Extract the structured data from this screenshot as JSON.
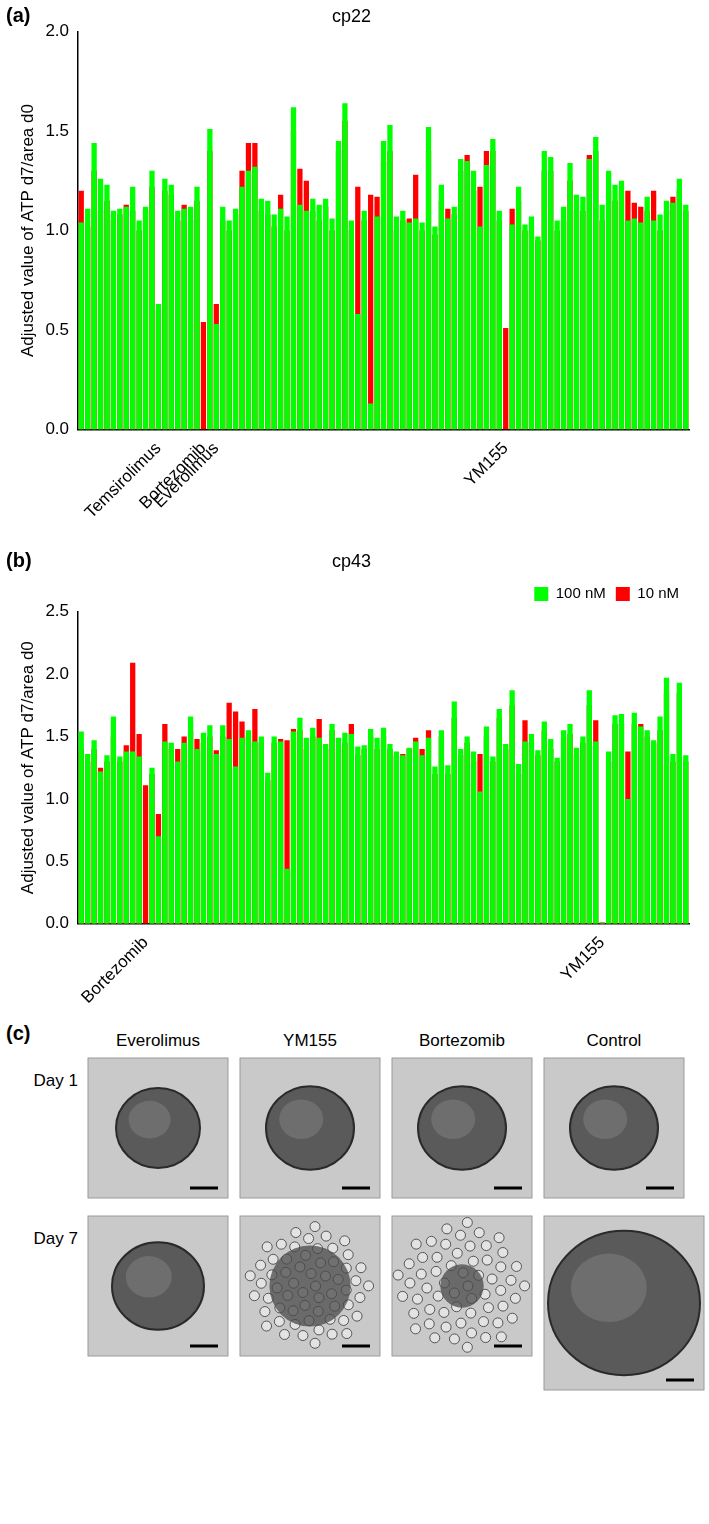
{
  "chart_data": [
    {
      "panel": "(a)",
      "type": "bar",
      "title": "cp22",
      "y_label": "Adjusted value of ATP d7/area d0",
      "categories": [
        null,
        null,
        null,
        null,
        null,
        null,
        null,
        null,
        null,
        null,
        null,
        null,
        "Temsirolimus",
        null,
        null,
        null,
        null,
        null,
        null,
        "Bortezomib",
        null,
        "Everolimus",
        null,
        null,
        null,
        null,
        null,
        null,
        null,
        null,
        null,
        null,
        null,
        null,
        null,
        null,
        null,
        null,
        null,
        null,
        null,
        null,
        null,
        null,
        null,
        null,
        null,
        null,
        null,
        null,
        null,
        null,
        null,
        null,
        null,
        null,
        null,
        null,
        null,
        null,
        null,
        null,
        null,
        null,
        null,
        null,
        "YM155",
        null,
        null,
        null,
        null,
        null,
        null,
        null,
        null,
        null,
        null,
        null,
        null,
        null,
        null,
        null,
        null,
        null,
        null,
        null,
        null,
        null,
        null,
        null,
        null,
        null,
        null,
        null,
        null
      ],
      "series": [
        {
          "name": "10 nM",
          "color": "#ff0000",
          "values": [
            1.2,
            1.02,
            1.3,
            1.1,
            1.15,
            1.05,
            1.08,
            1.13,
            1.1,
            1.0,
            1.1,
            1.22,
            0.6,
            1.2,
            1.18,
            1.05,
            1.13,
            1.05,
            1.15,
            0.54,
            1.4,
            0.63,
            1.05,
            1.0,
            1.08,
            1.3,
            1.44,
            1.44,
            1.1,
            1.08,
            1.02,
            1.18,
            1.0,
            1.5,
            1.31,
            1.25,
            1.1,
            1.05,
            1.12,
            1.0,
            1.4,
            1.55,
            1.0,
            1.22,
            1.05,
            1.18,
            1.17,
            1.35,
            1.4,
            1.0,
            1.05,
            1.06,
            1.28,
            1.0,
            1.4,
            0.98,
            1.15,
            1.11,
            1.08,
            1.3,
            1.38,
            1.2,
            1.22,
            1.4,
            1.4,
            1.05,
            0.51,
            1.11,
            1.15,
            1.0,
            1.0,
            0.95,
            1.3,
            1.3,
            1.0,
            1.05,
            1.25,
            1.1,
            1.1,
            1.38,
            1.4,
            1.05,
            1.2,
            1.15,
            1.2,
            1.2,
            1.14,
            1.12,
            1.1,
            1.2,
            1.0,
            1.1,
            1.17,
            1.2,
            1.1
          ]
        },
        {
          "name": "100 nM",
          "color": "#00ff00",
          "values": [
            1.04,
            1.11,
            1.44,
            1.26,
            1.23,
            1.1,
            1.11,
            1.12,
            1.22,
            1.05,
            1.12,
            1.3,
            0.63,
            1.26,
            1.23,
            1.1,
            1.11,
            1.12,
            1.22,
            0,
            1.51,
            0.53,
            1.12,
            1.05,
            1.11,
            1.22,
            1.3,
            1.32,
            1.16,
            1.15,
            1.08,
            1.11,
            1.07,
            1.62,
            1.13,
            1.1,
            1.16,
            1.13,
            1.16,
            1.06,
            1.45,
            1.64,
            1.05,
            0.58,
            1.1,
            0.13,
            1.07,
            1.45,
            1.53,
            1.07,
            1.1,
            1.04,
            1.06,
            1.04,
            1.52,
            1.02,
            1.23,
            1.06,
            1.12,
            1.36,
            1.35,
            1.3,
            1.02,
            1.33,
            1.46,
            1.1,
            0,
            1.03,
            1.22,
            1.03,
            1.07,
            0.97,
            1.4,
            1.37,
            1.05,
            1.12,
            1.34,
            1.18,
            1.17,
            1.36,
            1.47,
            1.13,
            1.3,
            1.23,
            1.25,
            1.05,
            1.06,
            1.04,
            1.17,
            1.05,
            1.08,
            1.15,
            1.14,
            1.26,
            1.13
          ]
        }
      ],
      "ylim": [
        0,
        2.0
      ],
      "yticks": [
        {
          "value": 0,
          "label": "0.0"
        },
        {
          "value": 0.5,
          "label": "0.5"
        },
        {
          "value": 1.0,
          "label": "1.0"
        },
        {
          "value": 1.5,
          "label": "1.5"
        },
        {
          "value": 2.0,
          "label": "2.0"
        }
      ],
      "grid": false
    },
    {
      "panel": "(b)",
      "type": "bar",
      "title": "cp43",
      "y_label": "Adjusted value of ATP d7/area d0",
      "categories": [
        null,
        null,
        null,
        null,
        null,
        null,
        null,
        null,
        null,
        null,
        "Bortezomib",
        null,
        null,
        null,
        null,
        null,
        null,
        null,
        null,
        null,
        null,
        null,
        null,
        null,
        null,
        null,
        null,
        null,
        null,
        null,
        null,
        null,
        null,
        null,
        null,
        null,
        null,
        null,
        null,
        null,
        null,
        null,
        null,
        null,
        null,
        null,
        null,
        null,
        null,
        null,
        null,
        null,
        null,
        null,
        null,
        null,
        null,
        null,
        null,
        null,
        null,
        null,
        null,
        null,
        null,
        null,
        null,
        null,
        null,
        null,
        null,
        null,
        null,
        null,
        null,
        null,
        null,
        null,
        null,
        null,
        null,
        "YM155",
        null,
        null,
        null,
        null,
        null,
        null,
        null,
        null,
        null,
        null,
        null,
        null,
        null
      ],
      "series": [
        {
          "name": "10 nM",
          "color": "#ff0000",
          "values": [
            1.4,
            1.3,
            1.4,
            1.25,
            1.3,
            1.5,
            1.3,
            1.43,
            2.09,
            1.52,
            1.11,
            1.2,
            0.88,
            1.6,
            1.4,
            1.4,
            1.5,
            1.55,
            1.48,
            1.45,
            1.5,
            1.39,
            1.5,
            1.77,
            1.7,
            1.62,
            1.5,
            1.72,
            1.45,
            1.15,
            1.45,
            1.48,
            1.47,
            1.56,
            1.55,
            1.4,
            1.5,
            1.64,
            1.4,
            1.55,
            1.4,
            1.45,
            1.6,
            1.35,
            1.4,
            1.5,
            1.4,
            1.5,
            1.4,
            1.35,
            1.36,
            1.4,
            1.49,
            1.4,
            1.55,
            1.2,
            1.5,
            1.2,
            1.65,
            1.35,
            1.45,
            1.3,
            1.36,
            1.5,
            1.3,
            1.65,
            1.4,
            1.75,
            1.2,
            1.63,
            1.45,
            1.35,
            1.55,
            1.4,
            1.3,
            1.5,
            1.52,
            1.35,
            1.45,
            1.75,
            1.63,
            0.01,
            1.3,
            1.6,
            1.6,
            1.38,
            1.6,
            1.6,
            1.5,
            1.45,
            1.55,
            1.85,
            1.3,
            1.85,
            1.3
          ]
        },
        {
          "name": "100 nM",
          "color": "#00ff00",
          "values": [
            1.54,
            1.36,
            1.47,
            1.22,
            1.35,
            1.66,
            1.34,
            1.38,
            1.38,
            1.34,
            0,
            1.25,
            0.7,
            1.46,
            1.45,
            1.3,
            1.45,
            1.66,
            1.4,
            1.53,
            1.59,
            1.36,
            1.59,
            1.48,
            1.26,
            1.49,
            1.55,
            1.46,
            1.5,
            1.21,
            1.5,
            1.46,
            0.44,
            1.54,
            1.65,
            1.49,
            1.57,
            1.49,
            1.44,
            1.6,
            1.49,
            1.53,
            1.52,
            1.42,
            1.43,
            1.56,
            1.49,
            1.57,
            1.44,
            1.38,
            1.35,
            1.41,
            1.46,
            1.35,
            1.49,
            1.26,
            1.55,
            1.27,
            1.78,
            1.4,
            1.5,
            1.38,
            1.06,
            1.58,
            1.34,
            1.72,
            1.44,
            1.87,
            1.28,
            1.46,
            1.52,
            1.39,
            1.62,
            1.48,
            1.33,
            1.55,
            1.6,
            1.41,
            1.5,
            1.87,
            1.46,
            0.01,
            1.38,
            1.67,
            1.68,
            1.0,
            1.69,
            1.58,
            1.55,
            1.47,
            1.66,
            1.97,
            1.36,
            1.93,
            1.35
          ]
        }
      ],
      "ylim": [
        0,
        2.5
      ],
      "yticks": [
        {
          "value": 0,
          "label": "0.0"
        },
        {
          "value": 0.5,
          "label": "0.5"
        },
        {
          "value": 1.0,
          "label": "1.0"
        },
        {
          "value": 1.5,
          "label": "1.5"
        },
        {
          "value": 2.0,
          "label": "2.0"
        },
        {
          "value": 2.5,
          "label": "2.5"
        }
      ],
      "grid": false,
      "legend": "top-right"
    }
  ],
  "image_grid": {
    "panel": "(c)",
    "columns": [
      "Everolimus",
      "YM155",
      "Bortezomib",
      "Control"
    ],
    "rows": [
      "Day 1",
      "Day 7"
    ]
  }
}
